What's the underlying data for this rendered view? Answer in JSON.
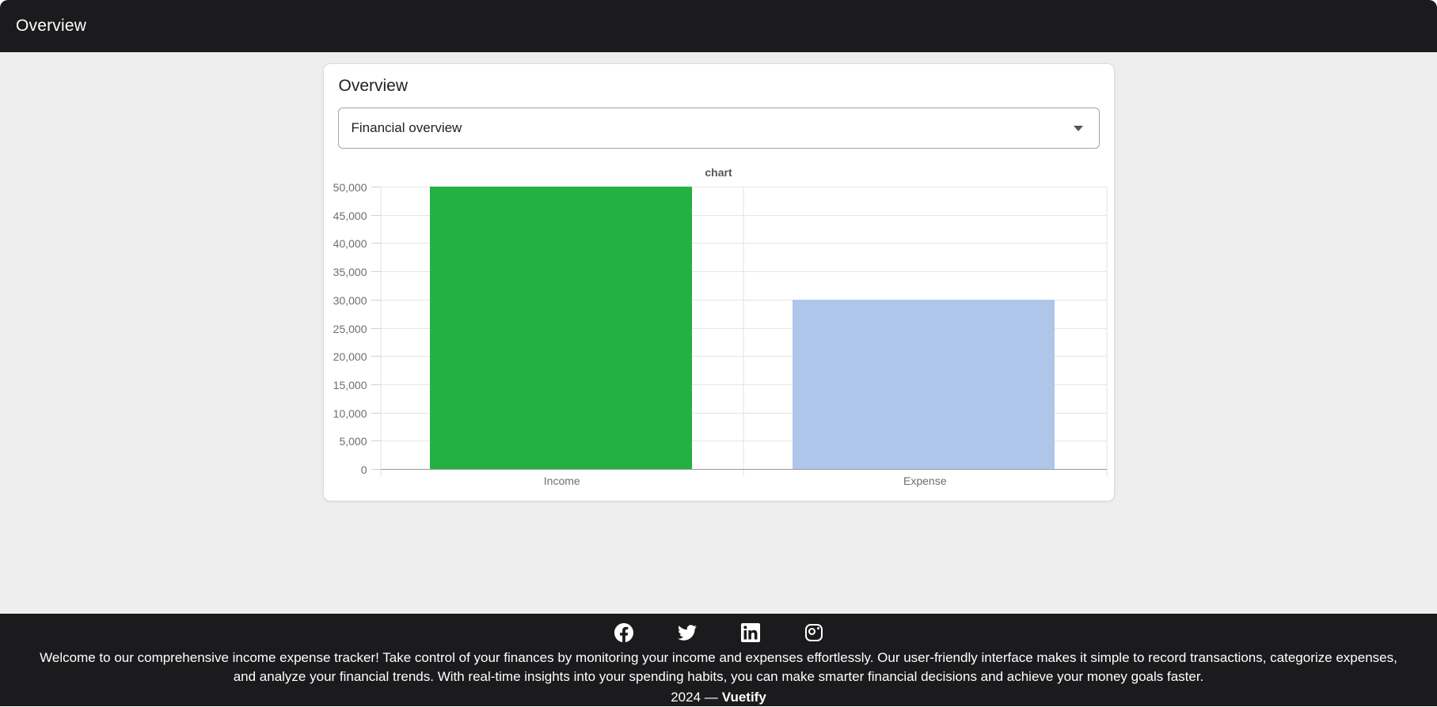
{
  "app_bar": {
    "title": "Overview"
  },
  "card": {
    "title": "Overview",
    "select": {
      "value": "Financial overview"
    }
  },
  "chart_data": {
    "type": "bar",
    "title": "chart",
    "categories": [
      "Income",
      "Expense"
    ],
    "values": [
      50000,
      30000
    ],
    "colors": [
      "#22b142",
      "#adc6e9"
    ],
    "ylim": [
      0,
      50000
    ],
    "ytick_step": 5000,
    "grid": true,
    "legend": "none",
    "xlabel": "",
    "ylabel": ""
  },
  "footer": {
    "social_icons": [
      "facebook-icon",
      "twitter-icon",
      "linkedin-icon",
      "instagram-icon"
    ],
    "description": "Welcome to our comprehensive income expense tracker! Take control of your finances by monitoring your income and expenses effortlessly. Our user-friendly interface makes it simple to record transactions, categorize expenses, and analyze your financial trends. With real-time insights into your spending habits, you can make smarter financial decisions and achieve your money goals faster.",
    "copyright_prefix": "2024 —",
    "brand": "Vuetify"
  },
  "colors": {
    "app_bar_bg": "#1b1b1d",
    "footer_bg": "#1b1b1d",
    "page_bg": "#eeeeee",
    "income_bar": "#22b142",
    "expense_bar": "#adc6e9"
  }
}
